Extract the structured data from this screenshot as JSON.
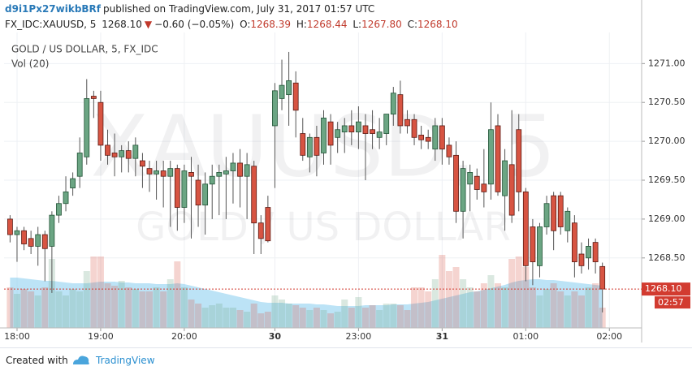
{
  "header": {
    "author": "d9i1Px27wikbBRf",
    "published": "published on TradingView.com, July 31, 2017 01:57 UTC",
    "symbol": "FX_IDC:XAUUSD, 5",
    "price": "1268.10",
    "arrow": "▼",
    "change": "−0.60 (−0.05%)",
    "ohlc": [
      {
        "label": "O:",
        "value": "1268.39"
      },
      {
        "label": "H:",
        "value": "1268.44"
      },
      {
        "label": "L:",
        "value": "1267.80"
      },
      {
        "label": "C:",
        "value": "1268.10"
      }
    ]
  },
  "footer": {
    "created": "Created with",
    "brand": "TradingView"
  },
  "chart_data": {
    "type": "candlestick",
    "title": "GOLD / US DOLLAR, 5, FX_IDC",
    "watermark": "XAUUSD, 5",
    "watermark_subtitle": "GOLD / US DOLLAR",
    "up_color": "#6ba583",
    "down_color": "#d75442",
    "ylim": [
      1267.6,
      1271.4
    ],
    "yticks": [
      {
        "value": 1268.5,
        "label": "1268.50"
      },
      {
        "value": 1269,
        "label": "1269.00"
      },
      {
        "value": 1269.5,
        "label": "1269.50"
      },
      {
        "value": 1270,
        "label": "1270.00"
      },
      {
        "value": 1270.5,
        "label": "1270.50"
      },
      {
        "value": 1271,
        "label": "1271.00"
      }
    ],
    "grid": true,
    "last_price": {
      "value": 1268.1,
      "label": "1268.10",
      "countdown": "02:57",
      "color": "#d23b30"
    },
    "x": [
      null,
      "18:00",
      null,
      null,
      null,
      null,
      null,
      null,
      null,
      null,
      null,
      null,
      null,
      "19:00",
      null,
      null,
      null,
      null,
      null,
      null,
      null,
      null,
      null,
      null,
      null,
      "20:00",
      null,
      null,
      null,
      null,
      null,
      null,
      null,
      null,
      null,
      null,
      null,
      null,
      "30",
      null,
      null,
      null,
      null,
      null,
      null,
      null,
      null,
      null,
      null,
      null,
      "23:00",
      null,
      null,
      null,
      null,
      null,
      null,
      null,
      null,
      null,
      null,
      null,
      "31",
      null,
      null,
      null,
      null,
      null,
      null,
      null,
      null,
      null,
      null,
      null,
      "01:00",
      null,
      null,
      null,
      null,
      null,
      null,
      null,
      null,
      null,
      null,
      null,
      "02:00"
    ],
    "open": [
      1269.0,
      1268.8,
      1268.85,
      1268.75,
      1268.65,
      1268.8,
      1268.65,
      1269.05,
      1269.2,
      1269.4,
      1269.55,
      1269.8,
      1270.58,
      1270.5,
      1269.95,
      1269.85,
      1269.8,
      1269.88,
      1269.78,
      1269.75,
      1269.65,
      1269.58,
      1269.62,
      1269.55,
      1269.65,
      1269.15,
      1269.6,
      1269.5,
      1269.18,
      1269.45,
      1269.55,
      1269.58,
      1269.62,
      1269.72,
      1269.55,
      1269.68,
      1268.95,
      1269.15,
      1270.2,
      1270.55,
      1270.6,
      1270.75,
      1270.1,
      1269.8,
      1270.05,
      1269.85,
      1270.25,
      1270.05,
      1270.12,
      1270.2,
      1270.12,
      1270.2,
      1270.15,
      1270.05,
      1270.1,
      1270.35,
      1270.6,
      1270.28,
      1270.28,
      1270.08,
      1270.05,
      1269.9,
      1270.2,
      1269.95,
      1269.82,
      1269.1,
      1269.45,
      1269.55,
      1269.45,
      1269.45,
      1270.2,
      1269.3,
      1269.7,
      1270.15,
      1269.35,
      1268.9,
      1268.4,
      1268.9,
      1269.3,
      1269.3,
      1268.85,
      1268.95,
      1268.55,
      1268.5,
      1268.7,
      1268.39,
      null
    ],
    "high": [
      1269.05,
      1268.9,
      1268.9,
      1268.85,
      1268.9,
      1268.85,
      1269.1,
      1269.3,
      1269.55,
      1269.6,
      1270.05,
      1270.8,
      1270.65,
      1270.65,
      1270.15,
      1270.1,
      1269.95,
      1270.0,
      1270.05,
      1269.85,
      1269.75,
      1269.75,
      1269.75,
      1269.75,
      1269.7,
      1269.7,
      1269.8,
      1269.7,
      1269.6,
      1269.7,
      1269.7,
      1269.8,
      1269.85,
      1269.9,
      1269.85,
      1269.75,
      1269.05,
      1269.3,
      1270.75,
      1271.05,
      1271.15,
      1270.9,
      1270.3,
      1270.1,
      1270.2,
      1270.4,
      1270.35,
      1270.25,
      1270.3,
      1270.4,
      1270.45,
      1270.35,
      1270.4,
      1270.3,
      1270.35,
      1270.7,
      1270.78,
      1270.4,
      1270.35,
      1270.2,
      1270.15,
      1270.3,
      1270.3,
      1270.05,
      1270.0,
      1269.75,
      1269.7,
      1269.65,
      1269.9,
      1270.5,
      1270.35,
      1269.9,
      1270.4,
      1270.35,
      1269.4,
      1269.0,
      1268.95,
      1269.3,
      1269.35,
      1269.35,
      1269.15,
      1269.05,
      1268.7,
      1268.75,
      1268.75,
      1268.44,
      null
    ],
    "low": [
      1268.7,
      1268.45,
      1268.6,
      1268.55,
      1268.4,
      1268.2,
      1268.05,
      1268.95,
      1269.1,
      1269.3,
      1269.4,
      1269.7,
      1270.3,
      1269.75,
      1269.7,
      1269.55,
      1269.6,
      1269.6,
      1269.55,
      1269.4,
      1269.35,
      1269.25,
      1269.15,
      1268.9,
      1268.85,
      1268.95,
      1268.75,
      1268.9,
      1268.8,
      1269.0,
      1269.05,
      1269.0,
      1269.2,
      1269.15,
      1269.0,
      1268.55,
      1268.55,
      1268.7,
      1269.4,
      1270.4,
      1270.2,
      1270.05,
      1269.75,
      1269.6,
      1269.55,
      1269.7,
      1269.7,
      1269.85,
      1269.85,
      1269.95,
      1269.9,
      1269.5,
      1269.9,
      1269.9,
      1269.95,
      1270.2,
      1270.1,
      1270.1,
      1269.95,
      1269.9,
      1269.9,
      1269.75,
      1269.7,
      1269.7,
      1268.95,
      1268.75,
      1269.1,
      1269.25,
      1269.15,
      1269.25,
      1269.3,
      1268.85,
      1268.95,
      1269.1,
      1268.2,
      1268.15,
      1268.25,
      1268.8,
      1268.6,
      1268.8,
      1268.7,
      1268.25,
      1268.3,
      1268.35,
      1268.3,
      1267.8,
      null
    ],
    "close": [
      1268.8,
      1268.85,
      1268.68,
      1268.65,
      1268.8,
      1268.62,
      1269.05,
      1269.2,
      1269.35,
      1269.52,
      1269.85,
      1270.55,
      1270.55,
      1269.95,
      1269.82,
      1269.8,
      1269.88,
      1269.78,
      1269.95,
      1269.68,
      1269.58,
      1269.62,
      1269.55,
      1269.65,
      1269.15,
      1269.62,
      1269.55,
      1269.18,
      1269.45,
      1269.55,
      1269.6,
      1269.62,
      1269.72,
      1269.55,
      1269.7,
      1268.95,
      1268.75,
      1268.72,
      1270.65,
      1270.72,
      1270.78,
      1270.4,
      1269.82,
      1270.05,
      1269.82,
      1270.3,
      1269.95,
      1270.15,
      1270.2,
      1270.12,
      1270.25,
      1270.1,
      1270.1,
      1270.12,
      1270.35,
      1270.62,
      1270.2,
      1270.2,
      1270.05,
      1270.02,
      1270.0,
      1270.2,
      1269.9,
      1269.8,
      1269.1,
      1269.65,
      1269.6,
      1269.38,
      1269.35,
      1270.15,
      1269.35,
      1269.75,
      1269.05,
      1269.35,
      1268.4,
      1268.45,
      1268.9,
      1269.2,
      1268.85,
      1268.9,
      1269.1,
      1268.45,
      1268.4,
      1268.65,
      1268.45,
      1268.1,
      null
    ],
    "volume": {
      "name": "Vol (20)",
      "lim": [
        0,
        100
      ],
      "ma_color": "#8fd0f0",
      "values": [
        50,
        42,
        48,
        45,
        40,
        50,
        85,
        45,
        40,
        48,
        45,
        70,
        88,
        88,
        55,
        52,
        58,
        50,
        48,
        45,
        45,
        50,
        45,
        60,
        82,
        50,
        35,
        30,
        25,
        28,
        30,
        25,
        25,
        22,
        20,
        30,
        18,
        20,
        40,
        35,
        30,
        28,
        25,
        22,
        25,
        22,
        18,
        20,
        35,
        25,
        38,
        25,
        28,
        22,
        30,
        30,
        28,
        22,
        50,
        50,
        45,
        60,
        90,
        70,
        75,
        60,
        50,
        45,
        55,
        65,
        55,
        50,
        85,
        88,
        75,
        50,
        40,
        48,
        55,
        45,
        40,
        45,
        40,
        50,
        55,
        25,
        null
      ],
      "ma": [
        62,
        62,
        61,
        60,
        59,
        58,
        58,
        57,
        56,
        55,
        55,
        55,
        56,
        57,
        57,
        57,
        56,
        56,
        55,
        55,
        55,
        54,
        54,
        54,
        55,
        54,
        52,
        50,
        48,
        46,
        44,
        42,
        40,
        38,
        36,
        34,
        32,
        31,
        31,
        31,
        30,
        30,
        30,
        30,
        29,
        29,
        28,
        27,
        27,
        27,
        27,
        28,
        28,
        28,
        28,
        29,
        29,
        29,
        30,
        31,
        32,
        34,
        36,
        38,
        40,
        42,
        44,
        45,
        47,
        49,
        51,
        53,
        56,
        58,
        59,
        60,
        60,
        59,
        59,
        58,
        57,
        56,
        55,
        54,
        53,
        52,
        null
      ]
    }
  }
}
